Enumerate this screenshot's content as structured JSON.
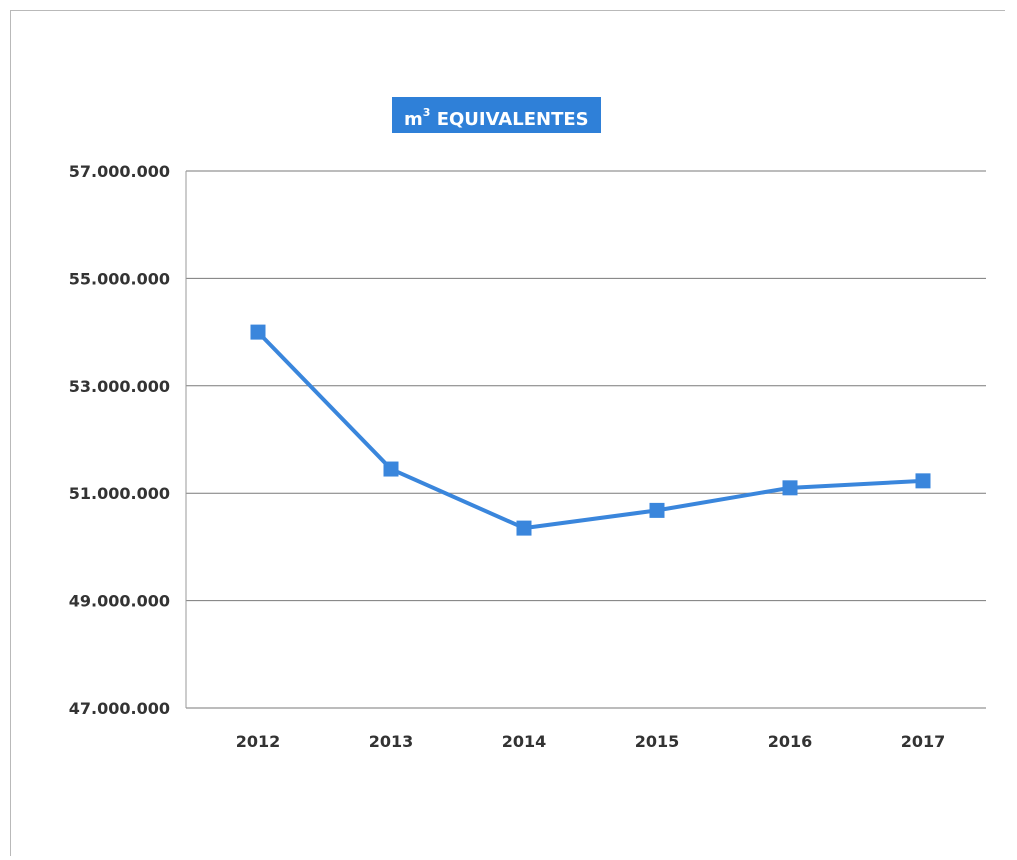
{
  "chart_data": {
    "type": "line",
    "title_main": "m",
    "title_sup": "3",
    "title_rest": " EQUIVALENTES",
    "categories": [
      "2012",
      "2013",
      "2014",
      "2015",
      "2016",
      "2017"
    ],
    "series": [
      {
        "values": [
          54000000,
          51450000,
          50350000,
          50680000,
          51100000,
          51230000
        ]
      }
    ],
    "ylim": [
      47000000,
      57000000
    ],
    "yticks": [
      47000000,
      49000000,
      51000000,
      53000000,
      55000000,
      57000000
    ],
    "ytick_labels": [
      "47.000.000",
      "49.000.000",
      "51.000.000",
      "53.000.000",
      "55.000.000",
      "57.000.000"
    ],
    "grid": true,
    "line_color": "#3a86dc",
    "marker": "square"
  }
}
